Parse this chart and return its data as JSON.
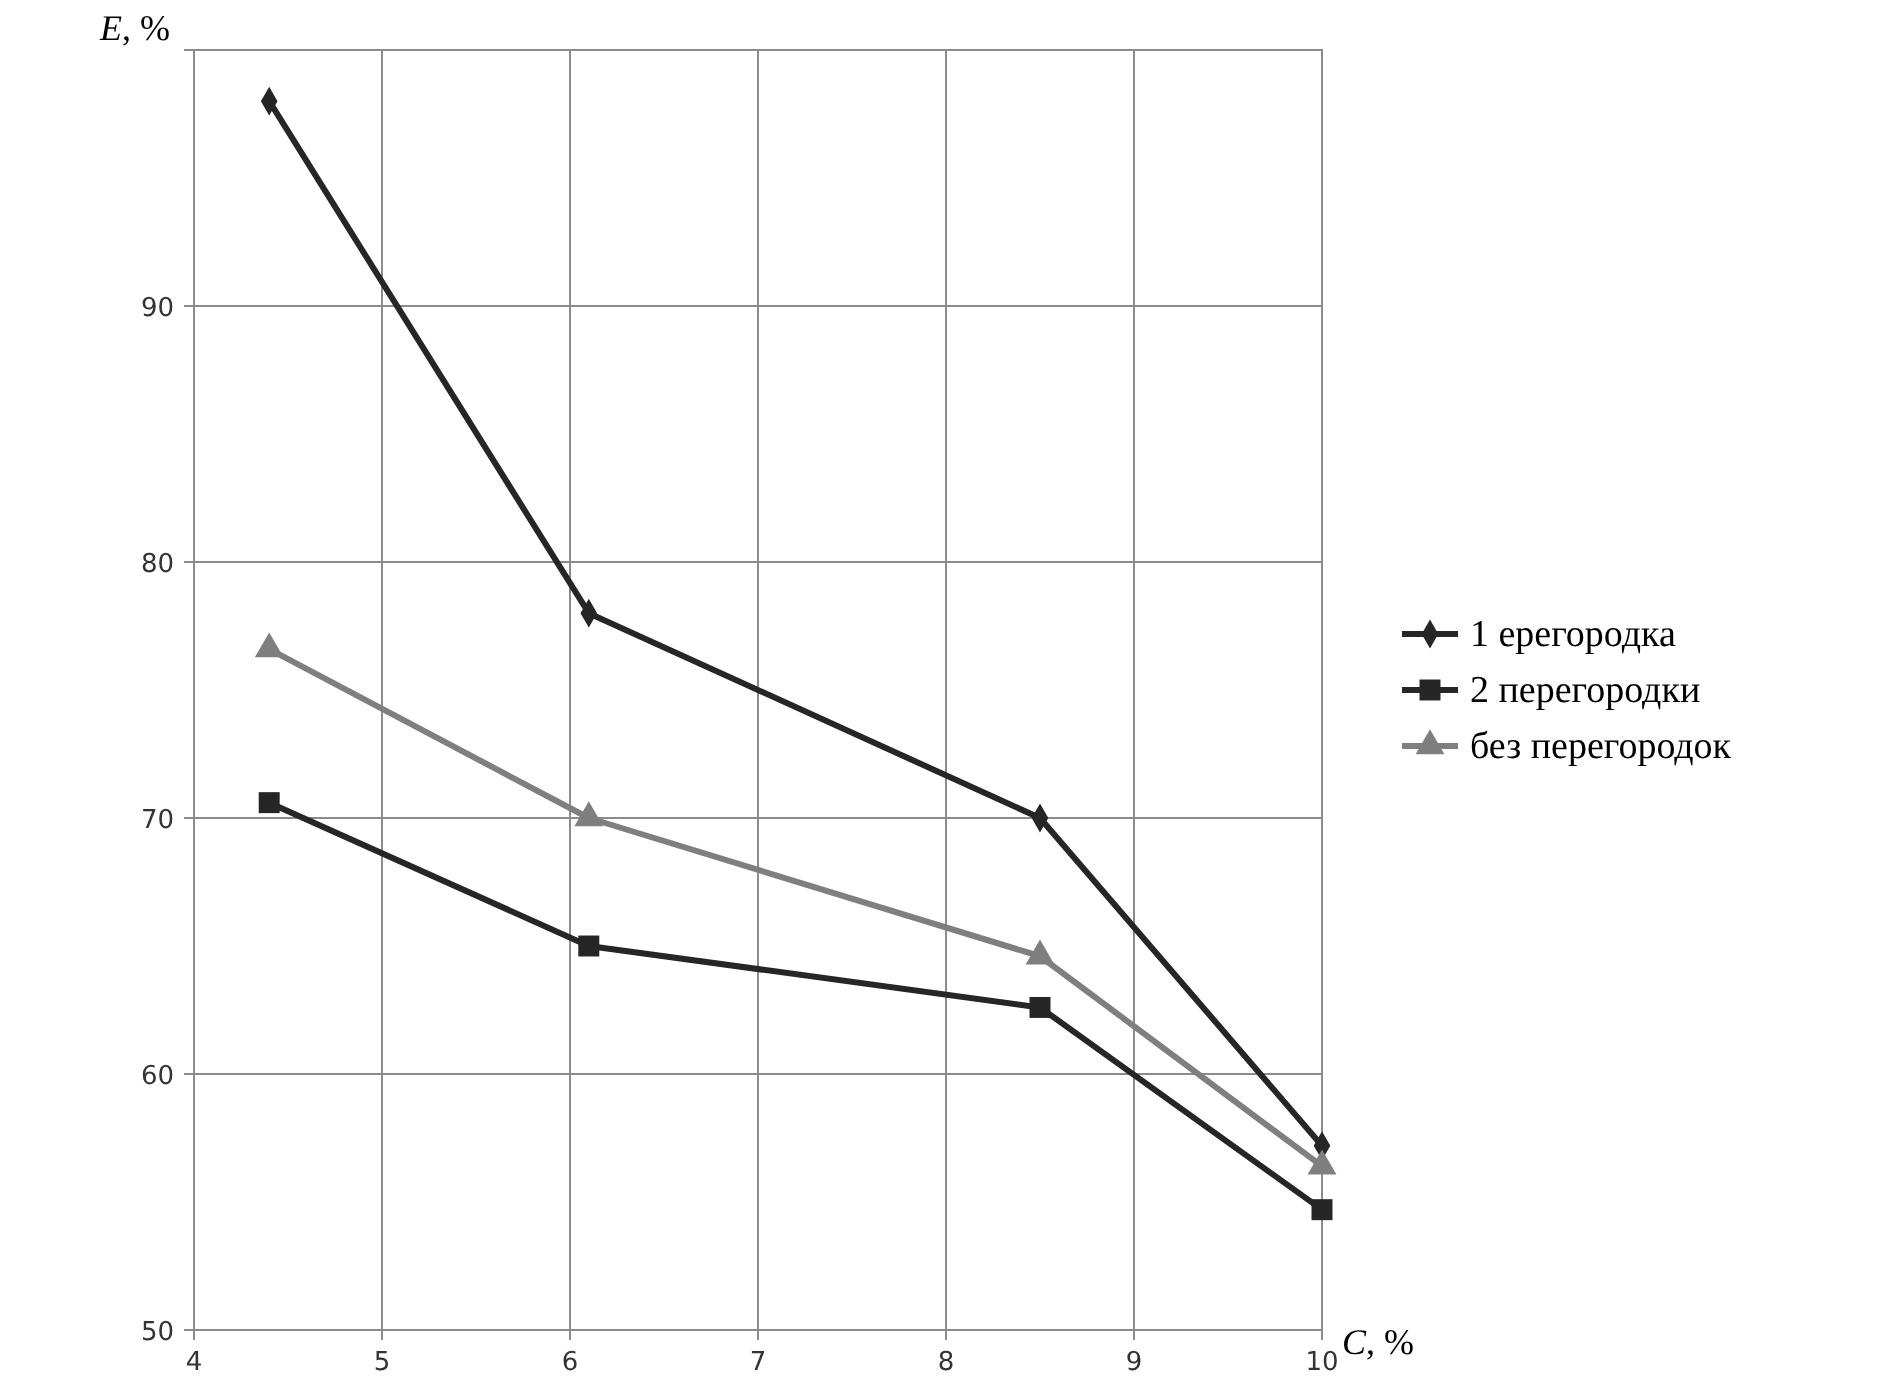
{
  "chart_data": {
    "type": "line",
    "xlabel": "C, %",
    "ylabel": "E, %",
    "x": [
      4.4,
      6.1,
      8.5,
      10
    ],
    "xlim": [
      4,
      10
    ],
    "xticks": [
      4,
      5,
      6,
      7,
      8,
      9,
      10
    ],
    "ylim": [
      50,
      100
    ],
    "yticks": [
      50,
      60,
      70,
      80,
      90,
      {
        "value": 100,
        "label": null
      }
    ],
    "grid": true,
    "legend": "right",
    "line_style": "solid",
    "series": [
      {
        "name": "1 ерегородка",
        "color": "#262626",
        "marker": "diamond",
        "values": [
          98,
          78,
          70,
          57.2
        ]
      },
      {
        "name": "2 перегородки",
        "color": "#262626",
        "marker": "square",
        "values": [
          70.6,
          65,
          62.6,
          54.7
        ]
      },
      {
        "name": "без перегородок",
        "color": "#7f7f7f",
        "marker": "triangle",
        "values": [
          76.6,
          70,
          64.6,
          56.4
        ]
      }
    ]
  }
}
